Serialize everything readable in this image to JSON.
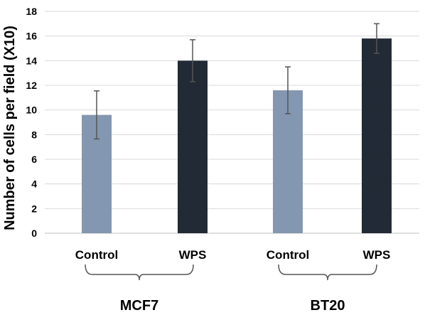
{
  "chart_data": {
    "type": "bar",
    "ylabel": "Number of cells per field (X10)",
    "ylim": [
      0,
      18
    ],
    "yticks": [
      0,
      2,
      4,
      6,
      8,
      10,
      12,
      14,
      16,
      18
    ],
    "grid": true,
    "bars": [
      {
        "category": "Control",
        "group": "MCF7",
        "value": 9.6,
        "error": 1.95,
        "color": "#8497b0"
      },
      {
        "category": "WPS",
        "group": "MCF7",
        "value": 14.0,
        "error": 1.7,
        "color": "#222a35"
      },
      {
        "category": "Control",
        "group": "BT20",
        "value": 11.6,
        "error": 1.9,
        "color": "#8497b0"
      },
      {
        "category": "WPS",
        "group": "BT20",
        "value": 15.8,
        "error": 1.2,
        "color": "#222a35"
      }
    ],
    "groups": [
      "MCF7",
      "BT20"
    ]
  }
}
